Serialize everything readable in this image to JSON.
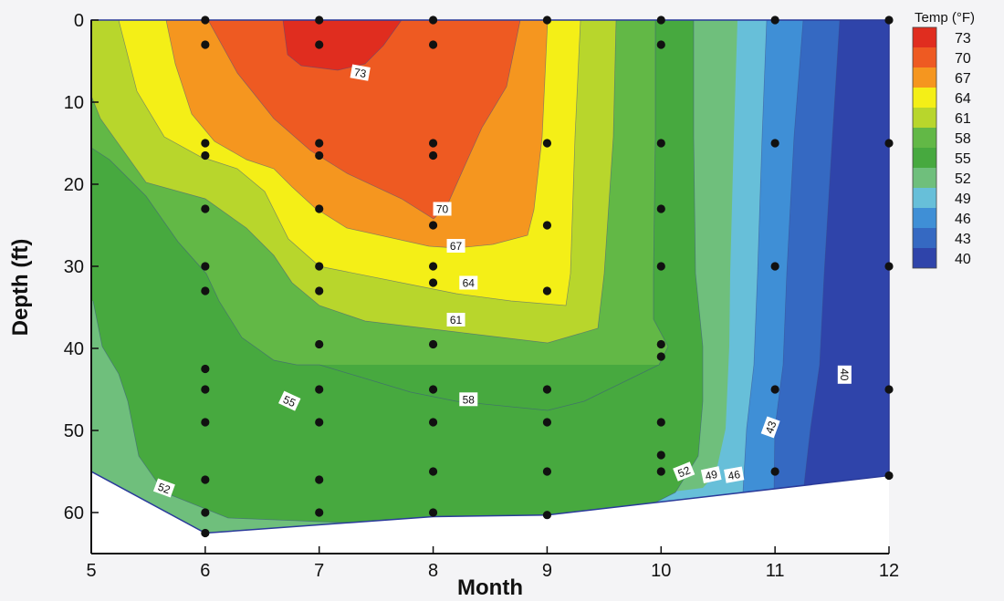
{
  "chart_data": {
    "type": "heatmap",
    "subtype": "filled-contour",
    "title": "",
    "xlabel": "Month",
    "ylabel": "Depth (ft)",
    "xlim": [
      5,
      12
    ],
    "ylim": [
      0,
      65
    ],
    "y_inverted": true,
    "x_ticks": [
      5,
      6,
      7,
      8,
      9,
      10,
      11,
      12
    ],
    "y_ticks": [
      0,
      10,
      20,
      30,
      40,
      50,
      60
    ],
    "x_tick_labels": [
      "5",
      "6",
      "7",
      "8",
      "9",
      "10",
      "11",
      "12"
    ],
    "y_tick_labels": [
      "0",
      "10",
      "20",
      "30",
      "40",
      "50",
      "60"
    ],
    "grid": false,
    "colorbar": {
      "title": "Temp (°F)",
      "position": "top-right",
      "levels": [
        73,
        70,
        67,
        64,
        61,
        58,
        55,
        52,
        49,
        46,
        43,
        40
      ],
      "colors": [
        "#e02d1f",
        "#ee5a22",
        "#f5961f",
        "#f4ef17",
        "#b8d62c",
        "#62b846",
        "#47a93f",
        "#6fbf7c",
        "#67bfd9",
        "#3f8fd6",
        "#3569c2",
        "#2f44aa"
      ]
    },
    "bottom_boundary": {
      "x": [
        5,
        6,
        8,
        9,
        12
      ],
      "depth": [
        55,
        62.5,
        60.5,
        60.3,
        55.5
      ]
    },
    "contour_labels": [
      {
        "text": "73",
        "x": 7.36,
        "depth": 6.4,
        "rotate": 10
      },
      {
        "text": "70",
        "x": 8.08,
        "depth": 23,
        "rotate": 0
      },
      {
        "text": "67",
        "x": 8.2,
        "depth": 27.5,
        "rotate": 0
      },
      {
        "text": "64",
        "x": 8.31,
        "depth": 32,
        "rotate": 0
      },
      {
        "text": "61",
        "x": 8.2,
        "depth": 36.5,
        "rotate": 0
      },
      {
        "text": "58",
        "x": 8.31,
        "depth": 46.2,
        "rotate": 0
      },
      {
        "text": "55",
        "x": 6.74,
        "depth": 46.4,
        "rotate": 25
      },
      {
        "text": "52",
        "x": 5.64,
        "depth": 57,
        "rotate": 20
      },
      {
        "text": "52",
        "x": 10.2,
        "depth": 55,
        "rotate": -22
      },
      {
        "text": "49",
        "x": 10.44,
        "depth": 55.4,
        "rotate": -12
      },
      {
        "text": "46",
        "x": 10.64,
        "depth": 55.4,
        "rotate": -10
      },
      {
        "text": "43",
        "x": 10.96,
        "depth": 49.6,
        "rotate": -70
      },
      {
        "text": "40",
        "x": 11.61,
        "depth": 43.2,
        "rotate": 90
      }
    ],
    "sample_points": [
      {
        "x": 6,
        "depth": [
          0,
          3,
          15,
          16.5,
          23,
          30,
          33,
          42.5,
          45,
          49,
          56,
          60,
          62.5
        ]
      },
      {
        "x": 7,
        "depth": [
          0,
          3,
          15,
          16.5,
          23,
          30,
          33,
          39.5,
          45,
          49,
          56,
          60
        ]
      },
      {
        "x": 8,
        "depth": [
          0,
          3,
          15,
          16.5,
          25,
          30,
          32,
          39.5,
          45,
          49,
          55,
          60
        ]
      },
      {
        "x": 9,
        "depth": [
          0,
          15,
          25,
          33,
          45,
          49,
          55,
          60.3
        ]
      },
      {
        "x": 10,
        "depth": [
          0,
          3,
          15,
          23,
          30,
          39.5,
          41,
          49,
          53,
          55
        ]
      },
      {
        "x": 11,
        "depth": [
          0,
          15,
          30,
          45,
          55
        ]
      },
      {
        "x": 12,
        "depth": [
          0,
          15,
          30,
          45,
          55.5
        ]
      }
    ]
  }
}
